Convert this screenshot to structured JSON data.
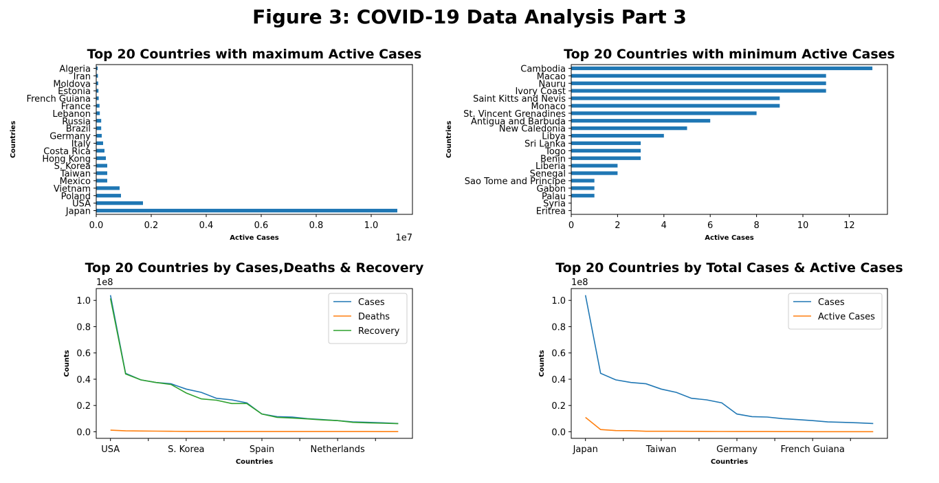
{
  "figure": {
    "title": "Figure 3: COVID-19 Data Analysis Part 3"
  },
  "chart_data": [
    {
      "type": "bar",
      "orientation": "horizontal",
      "title": "Top 20 Countries with maximum Active Cases",
      "xlabel": "Active Cases",
      "ylabel": "Countries",
      "x_offset_label": "1e7",
      "xlim": [
        0,
        11500000
      ],
      "xticks": [
        "0.0",
        "0.2",
        "0.4",
        "0.6",
        "0.8",
        "1.0"
      ],
      "color": "#1f77b4",
      "categories": [
        "Japan",
        "USA",
        "Poland",
        "Vietnam",
        "Mexico",
        "Taiwan",
        "S. Korea",
        "Hong Kong",
        "Costa Rica",
        "Italy",
        "Germany",
        "Brazil",
        "Russia",
        "Lebanon",
        "France",
        "French Guiana",
        "Estonia",
        "Moldova",
        "Iran",
        "Algeria"
      ],
      "values": [
        10950000,
        1700000,
        900000,
        850000,
        400000,
        400000,
        400000,
        350000,
        300000,
        250000,
        200000,
        180000,
        180000,
        130000,
        120000,
        90000,
        80000,
        70000,
        60000,
        50000
      ]
    },
    {
      "type": "bar",
      "orientation": "horizontal",
      "title": "Top 20 Countries with minimum Active Cases",
      "xlabel": "Active Cases",
      "ylabel": "Countries",
      "xlim": [
        0,
        13.65
      ],
      "xticks": [
        "0",
        "2",
        "4",
        "6",
        "8",
        "10",
        "12"
      ],
      "color": "#1f77b4",
      "categories": [
        "Eritrea",
        "Syria",
        "Palau",
        "Gabon",
        "Sao Tome and Principe",
        "Senegal",
        "Liberia",
        "Benin",
        "Togo",
        "Sri Lanka",
        "Libya",
        "New Caledonia",
        "Antigua and Barbuda",
        "St. Vincent Grenadines",
        "Monaco",
        "Saint Kitts and Nevis",
        "Ivory Coast",
        "Nauru",
        "Macao",
        "Cambodia"
      ],
      "values": [
        0,
        0,
        1,
        1,
        1,
        2,
        2,
        3,
        3,
        3,
        4,
        5,
        6,
        8,
        9,
        9,
        11,
        11,
        11,
        13
      ]
    },
    {
      "type": "line",
      "title": "Top 20 Countries by Cases,Deaths & Recovery",
      "xlabel": "Countries",
      "ylabel": "Counts",
      "y_offset_label": "1e8",
      "ylim": [
        -0.05,
        1.09
      ],
      "yticks": [
        "0.0",
        "0.2",
        "0.4",
        "0.6",
        "0.8",
        "1.0"
      ],
      "xticklabels": [
        "USA",
        "S. Korea",
        "Spain",
        "Netherlands"
      ],
      "legend": "upper right",
      "series": [
        {
          "name": "Cases",
          "color": "#1f77b4",
          "values": [
            1.04,
            0.445,
            0.395,
            0.375,
            0.365,
            0.325,
            0.3,
            0.255,
            0.243,
            0.22,
            0.135,
            0.115,
            0.112,
            0.1,
            0.093,
            0.085,
            0.075,
            0.072,
            0.068,
            0.063
          ]
        },
        {
          "name": "Deaths",
          "color": "#ff7f0e",
          "values": [
            0.012,
            0.007,
            0.006,
            0.005,
            0.004,
            0.003,
            0.003,
            0.003,
            0.002,
            0.002,
            0.002,
            0.002,
            0.002,
            0.002,
            0.002,
            0.002,
            0.002,
            0.002,
            0.001,
            0.001
          ]
        },
        {
          "name": "Recovery",
          "color": "#2ca02c",
          "values": [
            1.015,
            0.44,
            0.395,
            0.375,
            0.36,
            0.295,
            0.25,
            0.24,
            0.215,
            0.215,
            0.135,
            0.11,
            0.105,
            0.098,
            0.09,
            0.085,
            0.072,
            0.068,
            0.065,
            0.062
          ]
        }
      ]
    },
    {
      "type": "line",
      "title": "Top 20 Countries by Total Cases & Active Cases",
      "xlabel": "Countries",
      "ylabel": "Counts",
      "y_offset_label": "1e8",
      "ylim": [
        -0.05,
        1.09
      ],
      "yticks": [
        "0.0",
        "0.2",
        "0.4",
        "0.6",
        "0.8",
        "1.0"
      ],
      "xticklabels": [
        "Japan",
        "Taiwan",
        "Germany",
        "French Guiana"
      ],
      "legend": "upper right",
      "series": [
        {
          "name": "Cases",
          "color": "#1f77b4",
          "values": [
            1.04,
            0.445,
            0.395,
            0.375,
            0.365,
            0.325,
            0.3,
            0.255,
            0.243,
            0.22,
            0.135,
            0.115,
            0.112,
            0.1,
            0.093,
            0.085,
            0.075,
            0.072,
            0.068,
            0.063
          ]
        },
        {
          "name": "Active Cases",
          "color": "#ff7f0e",
          "values": [
            0.1095,
            0.017,
            0.009,
            0.0085,
            0.004,
            0.004,
            0.004,
            0.0035,
            0.003,
            0.0025,
            0.002,
            0.0018,
            0.0018,
            0.0013,
            0.0012,
            0.0009,
            0.0008,
            0.0007,
            0.0006,
            0.0005
          ]
        }
      ]
    }
  ]
}
